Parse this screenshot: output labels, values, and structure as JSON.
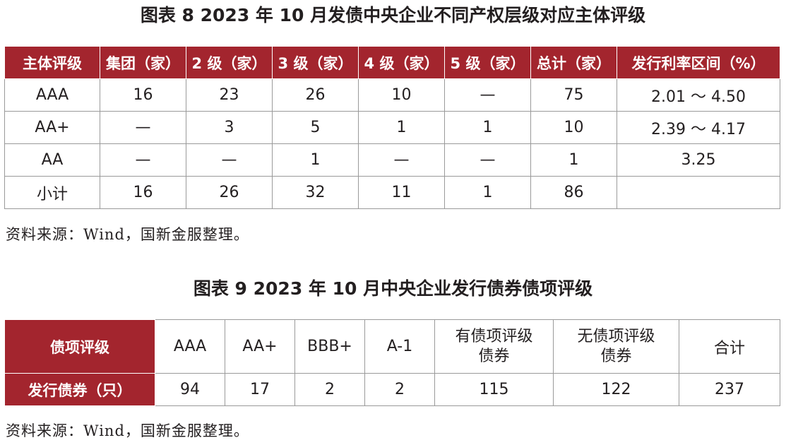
{
  "table1": {
    "title": "图表 8  2023 年 10 月发债中央企业不同产权层级对应主体评级",
    "headers": [
      "主体评级",
      "集团（家）",
      "2 级（家）",
      "3 级（家）",
      "4 级（家）",
      "5 级（家）",
      "总计（家）",
      "发行利率区间（%）"
    ],
    "rows": [
      [
        "AAA",
        "16",
        "23",
        "26",
        "10",
        "—",
        "75",
        "2.01 ～ 4.50"
      ],
      [
        "AA+",
        "—",
        "3",
        "5",
        "1",
        "1",
        "10",
        "2.39 ～ 4.17"
      ],
      [
        "AA",
        "—",
        "—",
        "1",
        "—",
        "—",
        "1",
        "3.25"
      ],
      [
        "小计",
        "16",
        "26",
        "32",
        "11",
        "1",
        "86",
        ""
      ]
    ],
    "source": "资料来源：Wind，国新金服整理。"
  },
  "table2": {
    "title": "图表 9  2023 年 10 月中央企业发行债券债项评级",
    "row_headers": [
      "债项评级",
      "发行债券（只）"
    ],
    "columns": [
      "AAA",
      "AA+",
      "BBB+",
      "A-1",
      "有债项评级\n债券",
      "无债项评级\n债券",
      "合计"
    ],
    "values": [
      "94",
      "17",
      "2",
      "2",
      "115",
      "122",
      "237"
    ],
    "source": "资料来源：Wind，国新金服整理。"
  },
  "colors": {
    "header_bg": "#a3252e",
    "header_text": "#ffffff",
    "border": "#9a9a9a"
  }
}
